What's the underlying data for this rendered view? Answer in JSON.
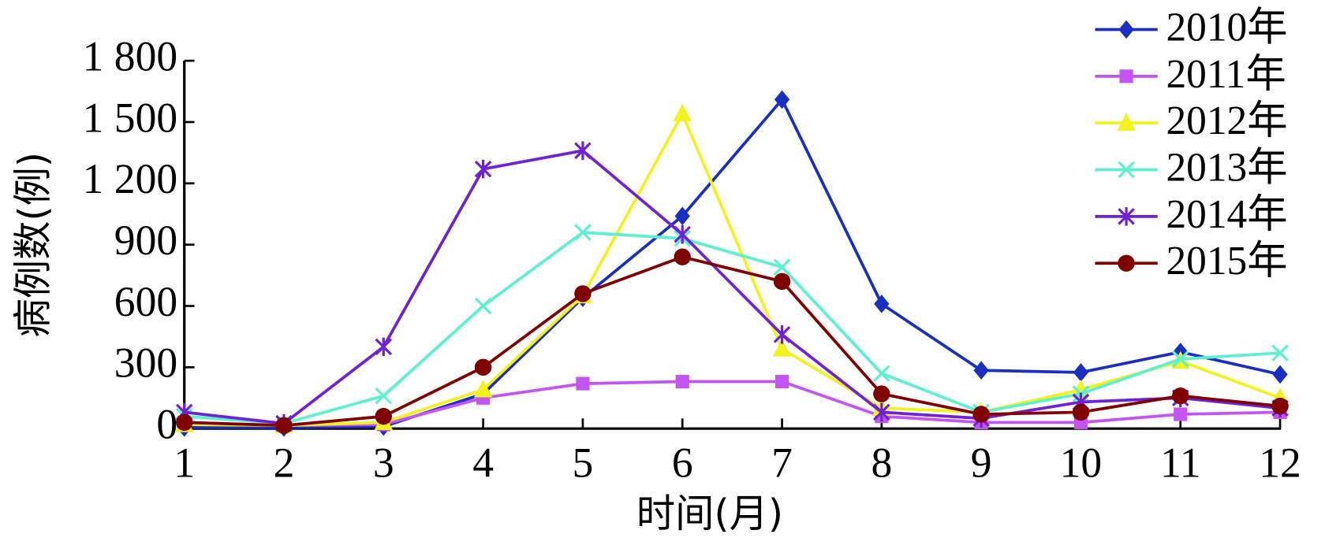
{
  "chart_data": {
    "type": "line",
    "x_label": "时间(月)",
    "y_label": "病例数(例)",
    "x": [
      1,
      2,
      3,
      4,
      5,
      6,
      7,
      8,
      9,
      10,
      11,
      12
    ],
    "xlim": [
      1,
      12
    ],
    "xticks": [
      1,
      2,
      3,
      4,
      5,
      6,
      7,
      8,
      9,
      10,
      11,
      12
    ],
    "ylim": [
      0,
      1800
    ],
    "yticks": [
      0,
      300,
      600,
      900,
      {
        "value": 1200,
        "label": "1 200"
      },
      {
        "value": 1500,
        "label": "1 500"
      },
      {
        "value": 1800,
        "label": "1 800"
      }
    ],
    "legend": "upper right",
    "series": [
      {
        "name": "2010年",
        "color": "#1a2fc0",
        "marker": "diamond",
        "values": [
          5,
          5,
          10,
          170,
          640,
          1040,
          1610,
          610,
          285,
          275,
          375,
          265
        ]
      },
      {
        "name": "2011年",
        "color": "#c455f2",
        "marker": "square",
        "values": [
          30,
          15,
          20,
          150,
          220,
          230,
          230,
          60,
          30,
          30,
          70,
          80
        ]
      },
      {
        "name": "2012年",
        "color": "#f2f21e",
        "marker": "triangle",
        "values": [
          20,
          15,
          30,
          190,
          650,
          1540,
          390,
          100,
          80,
          190,
          330,
          150
        ]
      },
      {
        "name": "2013年",
        "color": "#5ff0d0",
        "marker": "x",
        "values": [
          60,
          25,
          160,
          600,
          960,
          930,
          790,
          270,
          80,
          170,
          340,
          370
        ]
      },
      {
        "name": "2014年",
        "color": "#7022d2",
        "marker": "star",
        "values": [
          80,
          25,
          400,
          1270,
          1360,
          950,
          460,
          80,
          50,
          130,
          150,
          100
        ]
      },
      {
        "name": "2015年",
        "color": "#800000",
        "marker": "circle",
        "values": [
          30,
          15,
          60,
          300,
          660,
          840,
          720,
          170,
          70,
          80,
          160,
          110
        ]
      }
    ]
  }
}
